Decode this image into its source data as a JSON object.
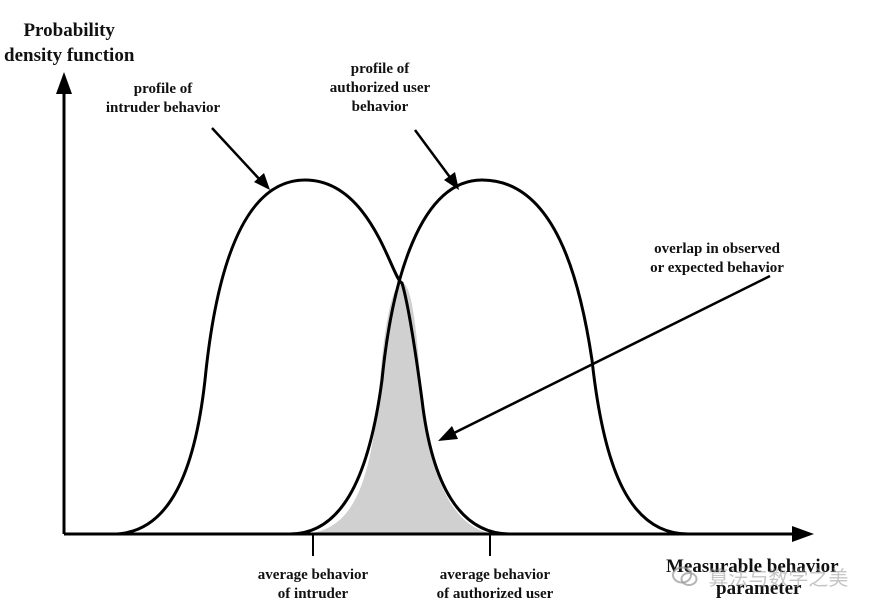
{
  "y_axis": {
    "label_lines": [
      "Probability",
      "density function"
    ]
  },
  "x_axis": {
    "label_lines": [
      "Measurable behavior",
      "parameter"
    ]
  },
  "annotations": {
    "intruder_profile": [
      "profile of",
      "intruder behavior"
    ],
    "authorized_profile": [
      "profile of",
      "authorized user",
      "behavior"
    ],
    "overlap": [
      "overlap in observed",
      "or expected behavior"
    ]
  },
  "ticks": {
    "intruder_mean": [
      "average behavior",
      "of intruder"
    ],
    "authorized_mean": [
      "average behavior",
      "of authorized user"
    ]
  },
  "watermark": {
    "icon": "wechat-logo-icon",
    "text": "算法与数学之美"
  },
  "colors": {
    "curve": "#000000",
    "overlap_fill": "#d0d0d0"
  }
}
